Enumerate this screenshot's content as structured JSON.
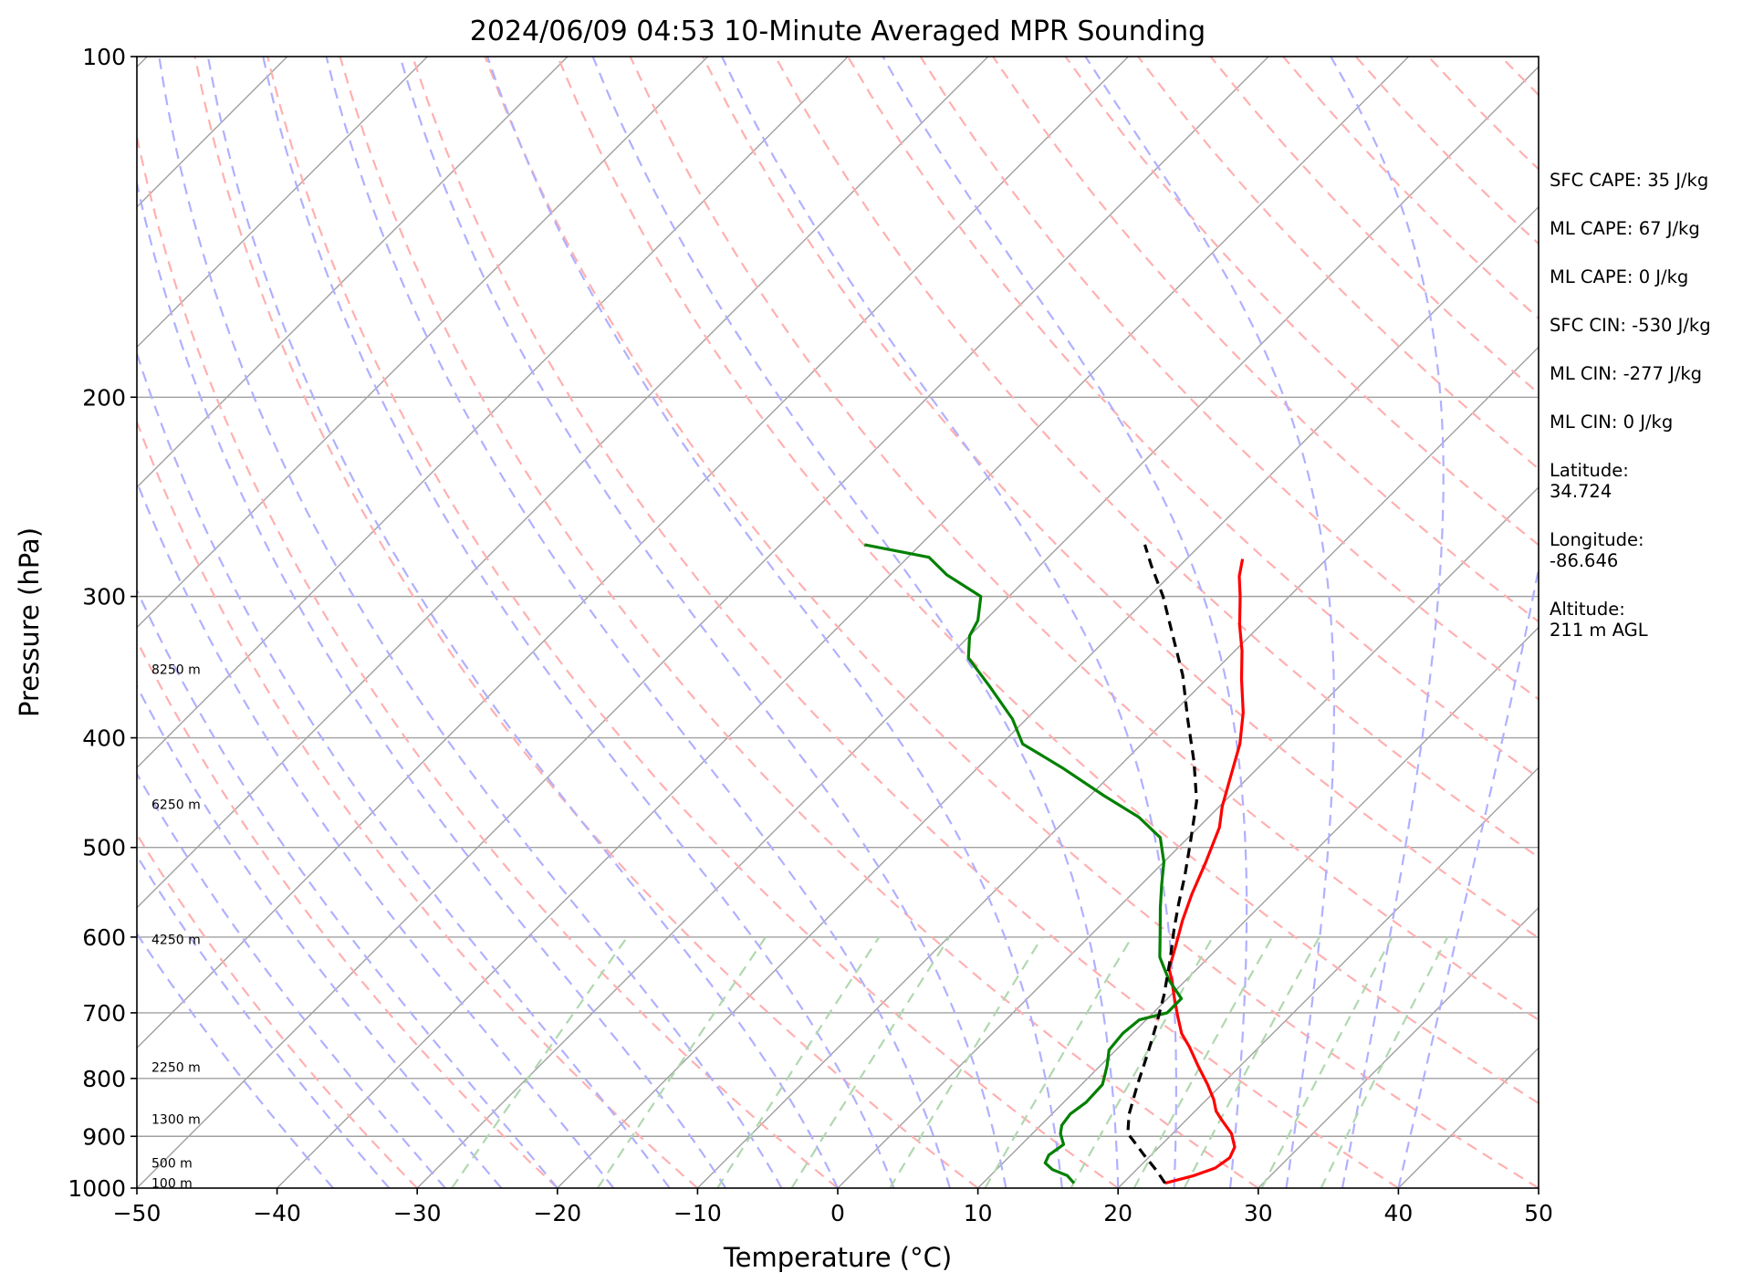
{
  "chart_data": {
    "type": "skew-t",
    "title": "2024/06/09 04:53 10-Minute Averaged MPR Sounding",
    "xlabel": "Temperature (°C)",
    "ylabel": "Pressure (hPa)",
    "xlim": [
      -50,
      50
    ],
    "ylim": [
      1000,
      100
    ],
    "y_scale": "log",
    "x_ticks": [
      -50,
      -40,
      -30,
      -20,
      -10,
      0,
      10,
      20,
      30,
      40,
      50
    ],
    "x_tick_labels": [
      "−50",
      "−40",
      "−30",
      "−20",
      "−10",
      "0",
      "10",
      "20",
      "30",
      "40",
      "50"
    ],
    "y_ticks": [
      1000,
      900,
      800,
      700,
      600,
      500,
      400,
      300,
      200,
      100
    ],
    "y_tick_labels": [
      "1000",
      "900",
      "800",
      "700",
      "600",
      "500",
      "400",
      "300",
      "200",
      "100"
    ],
    "grid": true,
    "colors": {
      "temperature": "#ff0000",
      "dewpoint": "#008000",
      "parcel": "#000000",
      "isotherm": "#a0a0a0",
      "dry_adiabat": "#ffb0b0",
      "moist_adiabat": "#b0b0ff",
      "mixing_ratio": "#b0d8b0"
    },
    "series": [
      {
        "key": "temperature",
        "style": "solid",
        "points": [
          [
            23.0,
            990
          ],
          [
            24.5,
            975
          ],
          [
            25.5,
            960
          ],
          [
            25.8,
            940
          ],
          [
            25.4,
            920
          ],
          [
            24.2,
            895
          ],
          [
            22.5,
            870
          ],
          [
            21.5,
            855
          ],
          [
            20.5,
            835
          ],
          [
            19.0,
            810
          ],
          [
            17.0,
            780
          ],
          [
            15.0,
            750
          ],
          [
            13.5,
            730
          ],
          [
            12.0,
            705
          ],
          [
            10.5,
            680
          ],
          [
            9.0,
            655
          ],
          [
            8.0,
            640
          ],
          [
            6.8,
            610
          ],
          [
            5.5,
            580
          ],
          [
            4.3,
            550
          ],
          [
            3.0,
            515
          ],
          [
            1.5,
            480
          ],
          [
            0.2,
            460
          ],
          [
            -1.2,
            435
          ],
          [
            -3.0,
            405
          ],
          [
            -5.0,
            380
          ],
          [
            -7.5,
            355
          ],
          [
            -9.5,
            335
          ],
          [
            -11.5,
            318
          ],
          [
            -13.5,
            300
          ],
          [
            -15.0,
            288
          ],
          [
            -16.0,
            278
          ]
        ]
      },
      {
        "key": "dewpoint",
        "style": "solid",
        "points": [
          [
            16.5,
            990
          ],
          [
            15.5,
            975
          ],
          [
            14.0,
            963
          ],
          [
            13.0,
            950
          ],
          [
            12.7,
            935
          ],
          [
            13.0,
            915
          ],
          [
            12.0,
            895
          ],
          [
            11.5,
            880
          ],
          [
            11.3,
            860
          ],
          [
            11.6,
            840
          ],
          [
            11.5,
            810
          ],
          [
            10.5,
            780
          ],
          [
            9.5,
            755
          ],
          [
            9.3,
            730
          ],
          [
            9.5,
            710
          ],
          [
            11.0,
            700
          ],
          [
            11.0,
            680
          ],
          [
            8.8,
            655
          ],
          [
            6.5,
            625
          ],
          [
            4.8,
            595
          ],
          [
            3.0,
            565
          ],
          [
            1.5,
            540
          ],
          [
            0.0,
            515
          ],
          [
            -2.0,
            490
          ],
          [
            -5.0,
            470
          ],
          [
            -9.0,
            450
          ],
          [
            -14.0,
            425
          ],
          [
            -18.5,
            405
          ],
          [
            -21.0,
            385
          ],
          [
            -25.0,
            360
          ],
          [
            -28.5,
            340
          ],
          [
            -30.0,
            325
          ],
          [
            -30.5,
            315
          ],
          [
            -32.0,
            300
          ],
          [
            -36.0,
            287
          ],
          [
            -38.5,
            277
          ],
          [
            -44.0,
            270
          ]
        ]
      },
      {
        "key": "parcel",
        "style": "dashed",
        "points": [
          [
            23.0,
            990
          ],
          [
            21.5,
            965
          ],
          [
            19.5,
            935
          ],
          [
            17.5,
            905
          ],
          [
            16.8,
            895
          ],
          [
            15.5,
            860
          ],
          [
            14.0,
            810
          ],
          [
            12.5,
            760
          ],
          [
            11.0,
            715
          ],
          [
            9.5,
            675
          ],
          [
            7.5,
            630
          ],
          [
            5.5,
            590
          ],
          [
            4.0,
            560
          ],
          [
            2.5,
            530
          ],
          [
            0.5,
            495
          ],
          [
            -2.0,
            455
          ],
          [
            -5.0,
            420
          ],
          [
            -8.5,
            385
          ],
          [
            -12.0,
            352
          ],
          [
            -15.5,
            325
          ],
          [
            -19.0,
            300
          ],
          [
            -22.0,
            282
          ],
          [
            -24.0,
            270
          ]
        ]
      }
    ],
    "height_labels": [
      {
        "label": "100 m",
        "p": 990
      },
      {
        "label": "500 m",
        "p": 950
      },
      {
        "label": "1300 m",
        "p": 869
      },
      {
        "label": "2250 m",
        "p": 782
      },
      {
        "label": "4250 m",
        "p": 603
      },
      {
        "label": "6250 m",
        "p": 458
      },
      {
        "label": "8250 m",
        "p": 348
      }
    ],
    "side_text": [
      "SFC CAPE: 35 J/kg",
      "ML CAPE: 67 J/kg",
      "ML CAPE: 0 J/kg",
      "SFC CIN: -530 J/kg",
      "ML CIN: -277 J/kg",
      "ML CIN: 0 J/kg",
      "Latitude:\n34.724",
      "Longitude:\n-86.646",
      "Altitude:\n211 m AGL"
    ]
  }
}
